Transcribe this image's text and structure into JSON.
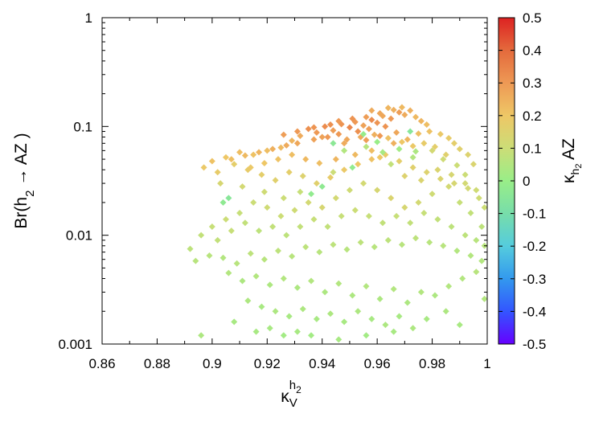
{
  "chart_data": {
    "type": "scatter",
    "title": "",
    "xlabel": {
      "base": "κ",
      "sub": "V",
      "sup_base": "h",
      "sup_sub": "2"
    },
    "ylabel": {
      "prefix": "Br(h",
      "sub": "2",
      "suffix": " → AZ )"
    },
    "colorbar_label": {
      "base": "κ",
      "sub_base": "h",
      "sub_sub": "2",
      "suffix": " AZ"
    },
    "xlim": [
      0.86,
      1.0
    ],
    "ylim": [
      0.001,
      1
    ],
    "y_scale": "log",
    "grid": false,
    "x_ticks": [
      {
        "value": 0.86,
        "label": "0.86"
      },
      {
        "value": 0.88,
        "label": "0.88"
      },
      {
        "value": 0.9,
        "label": "0.9"
      },
      {
        "value": 0.92,
        "label": "0.92"
      },
      {
        "value": 0.94,
        "label": "0.94"
      },
      {
        "value": 0.96,
        "label": "0.96"
      },
      {
        "value": 0.98,
        "label": "0.98"
      },
      {
        "value": 1.0,
        "label": "1"
      }
    ],
    "y_ticks": [
      {
        "value": 0.001,
        "label": "0.001"
      },
      {
        "value": 0.01,
        "label": "0.01"
      },
      {
        "value": 0.1,
        "label": "0.1"
      },
      {
        "value": 1,
        "label": "1"
      }
    ],
    "colorbar": {
      "range": [
        -0.5,
        0.5
      ],
      "ticks": [
        {
          "value": 0.5,
          "label": "0.5"
        },
        {
          "value": 0.4,
          "label": "0.4"
        },
        {
          "value": 0.3,
          "label": "0.3"
        },
        {
          "value": 0.2,
          "label": "0.2"
        },
        {
          "value": 0.1,
          "label": "0.1"
        },
        {
          "value": 0.0,
          "label": "0"
        },
        {
          "value": -0.1,
          "label": "-0.1"
        },
        {
          "value": -0.2,
          "label": "-0.2"
        },
        {
          "value": -0.3,
          "label": "-0.3"
        },
        {
          "value": -0.4,
          "label": "-0.4"
        },
        {
          "value": -0.5,
          "label": "-0.5"
        }
      ],
      "colors": [
        "#6600ff",
        "#3355ff",
        "#3399ee",
        "#55ccdd",
        "#77ddaa",
        "#99ee88",
        "#ccdd77",
        "#eec766",
        "#ee9955",
        "#e46a3c",
        "#dd2222"
      ]
    },
    "points": [
      [
        0.935,
        0.095,
        0.32
      ],
      [
        0.938,
        0.088,
        0.3
      ],
      [
        0.941,
        0.1,
        0.33
      ],
      [
        0.944,
        0.092,
        0.29
      ],
      [
        0.947,
        0.105,
        0.31
      ],
      [
        0.95,
        0.098,
        0.34
      ],
      [
        0.952,
        0.11,
        0.3
      ],
      [
        0.955,
        0.102,
        0.28
      ],
      [
        0.958,
        0.115,
        0.33
      ],
      [
        0.96,
        0.108,
        0.31
      ],
      [
        0.962,
        0.125,
        0.27
      ],
      [
        0.965,
        0.118,
        0.3
      ],
      [
        0.968,
        0.135,
        0.29
      ],
      [
        0.97,
        0.128,
        0.26
      ],
      [
        0.972,
        0.14,
        0.25
      ],
      [
        0.974,
        0.122,
        0.23
      ],
      [
        0.976,
        0.112,
        0.24
      ],
      [
        0.978,
        0.104,
        0.22
      ],
      [
        0.94,
        0.08,
        0.28
      ],
      [
        0.946,
        0.085,
        0.3
      ],
      [
        0.953,
        0.09,
        0.32
      ],
      [
        0.957,
        0.095,
        0.29
      ],
      [
        0.963,
        0.1,
        0.31
      ],
      [
        0.967,
        0.088,
        0.27
      ],
      [
        0.932,
        0.082,
        0.26
      ],
      [
        0.929,
        0.074,
        0.24
      ],
      [
        0.948,
        0.07,
        0.26
      ],
      [
        0.956,
        0.075,
        0.29
      ],
      [
        0.961,
        0.082,
        0.3
      ],
      [
        0.966,
        0.07,
        0.25
      ],
      [
        0.971,
        0.076,
        0.24
      ],
      [
        0.975,
        0.086,
        0.22
      ],
      [
        0.979,
        0.09,
        0.21
      ],
      [
        0.983,
        0.085,
        0.19
      ],
      [
        0.986,
        0.078,
        0.18
      ],
      [
        0.988,
        0.07,
        0.17
      ],
      [
        0.99,
        0.062,
        0.16
      ],
      [
        0.993,
        0.055,
        0.15
      ],
      [
        0.995,
        0.045,
        0.14
      ],
      [
        0.92,
        0.06,
        0.22
      ],
      [
        0.925,
        0.064,
        0.23
      ],
      [
        0.915,
        0.055,
        0.21
      ],
      [
        0.91,
        0.058,
        0.22
      ],
      [
        0.905,
        0.052,
        0.2
      ],
      [
        0.9,
        0.048,
        0.21
      ],
      [
        0.897,
        0.042,
        0.19
      ],
      [
        0.902,
        0.038,
        0.18
      ],
      [
        0.908,
        0.045,
        0.17
      ],
      [
        0.913,
        0.04,
        0.18
      ],
      [
        0.918,
        0.036,
        0.17
      ],
      [
        0.923,
        0.032,
        0.16
      ],
      [
        0.928,
        0.038,
        0.17
      ],
      [
        0.933,
        0.035,
        0.15
      ],
      [
        0.938,
        0.03,
        0.16
      ],
      [
        0.943,
        0.034,
        0.18
      ],
      [
        0.948,
        0.04,
        0.19
      ],
      [
        0.953,
        0.045,
        0.2
      ],
      [
        0.958,
        0.05,
        0.21
      ],
      [
        0.963,
        0.055,
        0.18
      ],
      [
        0.968,
        0.048,
        0.17
      ],
      [
        0.973,
        0.042,
        0.16
      ],
      [
        0.978,
        0.038,
        0.15
      ],
      [
        0.983,
        0.033,
        0.14
      ],
      [
        0.988,
        0.03,
        0.13
      ],
      [
        0.993,
        0.027,
        0.12
      ],
      [
        0.997,
        0.022,
        0.11
      ],
      [
        0.999,
        0.018,
        0.1
      ],
      [
        0.948,
        0.06,
        0.05
      ],
      [
        0.962,
        0.058,
        0.03
      ],
      [
        0.968,
        0.062,
        0.02
      ],
      [
        0.974,
        0.059,
        0.04
      ],
      [
        0.956,
        0.065,
        0.06
      ],
      [
        0.972,
        0.09,
        -0.05
      ],
      [
        0.944,
        0.07,
        -0.04
      ],
      [
        0.906,
        0.022,
        -0.05
      ],
      [
        0.904,
        0.02,
        -0.03
      ],
      [
        0.951,
        0.042,
        -0.02
      ],
      [
        0.94,
        0.028,
        -0.03
      ],
      [
        0.936,
        0.024,
        -0.02
      ],
      [
        0.98,
        0.06,
        0.12
      ],
      [
        0.984,
        0.05,
        0.11
      ],
      [
        0.989,
        0.044,
        0.1
      ],
      [
        0.992,
        0.036,
        0.1
      ],
      [
        0.986,
        0.028,
        0.12
      ],
      [
        0.98,
        0.024,
        0.11
      ],
      [
        0.975,
        0.02,
        0.12
      ],
      [
        0.97,
        0.018,
        0.13
      ],
      [
        0.965,
        0.022,
        0.14
      ],
      [
        0.96,
        0.026,
        0.13
      ],
      [
        0.955,
        0.03,
        0.12
      ],
      [
        0.95,
        0.026,
        0.11
      ],
      [
        0.945,
        0.022,
        0.12
      ],
      [
        0.94,
        0.018,
        0.13
      ],
      [
        0.935,
        0.02,
        0.12
      ],
      [
        0.93,
        0.017,
        0.11
      ],
      [
        0.925,
        0.015,
        0.1
      ],
      [
        0.92,
        0.018,
        0.11
      ],
      [
        0.915,
        0.02,
        0.1
      ],
      [
        0.91,
        0.016,
        0.09
      ],
      [
        0.905,
        0.014,
        0.1
      ],
      [
        0.9,
        0.012,
        0.09
      ],
      [
        0.896,
        0.01,
        0.08
      ],
      [
        0.902,
        0.009,
        0.08
      ],
      [
        0.907,
        0.011,
        0.09
      ],
      [
        0.912,
        0.013,
        0.08
      ],
      [
        0.917,
        0.011,
        0.07
      ],
      [
        0.922,
        0.012,
        0.08
      ],
      [
        0.927,
        0.01,
        0.07
      ],
      [
        0.932,
        0.012,
        0.08
      ],
      [
        0.937,
        0.014,
        0.09
      ],
      [
        0.942,
        0.012,
        0.08
      ],
      [
        0.947,
        0.015,
        0.09
      ],
      [
        0.952,
        0.017,
        0.1
      ],
      [
        0.957,
        0.015,
        0.09
      ],
      [
        0.962,
        0.013,
        0.08
      ],
      [
        0.967,
        0.015,
        0.09
      ],
      [
        0.972,
        0.013,
        0.08
      ],
      [
        0.977,
        0.016,
        0.09
      ],
      [
        0.982,
        0.014,
        0.08
      ],
      [
        0.987,
        0.012,
        0.07
      ],
      [
        0.992,
        0.01,
        0.07
      ],
      [
        0.996,
        0.009,
        0.06
      ],
      [
        0.999,
        0.008,
        0.06
      ],
      [
        0.998,
        0.012,
        0.07
      ],
      [
        0.994,
        0.016,
        0.08
      ],
      [
        0.99,
        0.02,
        0.09
      ],
      [
        0.892,
        0.0075,
        0.07
      ],
      [
        0.894,
        0.0058,
        0.06
      ],
      [
        0.899,
        0.0065,
        0.06
      ],
      [
        0.904,
        0.0062,
        0.05
      ],
      [
        0.909,
        0.0055,
        0.06
      ],
      [
        0.914,
        0.0068,
        0.07
      ],
      [
        0.919,
        0.006,
        0.06
      ],
      [
        0.924,
        0.0072,
        0.07
      ],
      [
        0.929,
        0.0064,
        0.06
      ],
      [
        0.934,
        0.0078,
        0.07
      ],
      [
        0.939,
        0.007,
        0.06
      ],
      [
        0.944,
        0.0082,
        0.07
      ],
      [
        0.949,
        0.0074,
        0.06
      ],
      [
        0.954,
        0.0086,
        0.07
      ],
      [
        0.959,
        0.0078,
        0.06
      ],
      [
        0.964,
        0.009,
        0.07
      ],
      [
        0.969,
        0.0082,
        0.06
      ],
      [
        0.974,
        0.0094,
        0.07
      ],
      [
        0.979,
        0.0086,
        0.06
      ],
      [
        0.984,
        0.008,
        0.06
      ],
      [
        0.989,
        0.0072,
        0.05
      ],
      [
        0.994,
        0.0065,
        0.05
      ],
      [
        0.998,
        0.0058,
        0.05
      ],
      [
        0.906,
        0.0045,
        0.05
      ],
      [
        0.911,
        0.0038,
        0.04
      ],
      [
        0.916,
        0.0042,
        0.05
      ],
      [
        0.921,
        0.0035,
        0.04
      ],
      [
        0.926,
        0.004,
        0.05
      ],
      [
        0.931,
        0.0033,
        0.04
      ],
      [
        0.936,
        0.0038,
        0.05
      ],
      [
        0.941,
        0.003,
        0.04
      ],
      [
        0.946,
        0.0036,
        0.05
      ],
      [
        0.951,
        0.0028,
        0.04
      ],
      [
        0.956,
        0.0034,
        0.05
      ],
      [
        0.961,
        0.0026,
        0.04
      ],
      [
        0.966,
        0.0032,
        0.05
      ],
      [
        0.971,
        0.0024,
        0.04
      ],
      [
        0.976,
        0.003,
        0.05
      ],
      [
        0.981,
        0.0028,
        0.04
      ],
      [
        0.986,
        0.0034,
        0.05
      ],
      [
        0.991,
        0.004,
        0.05
      ],
      [
        0.996,
        0.0046,
        0.06
      ],
      [
        0.999,
        0.0026,
        0.05
      ],
      [
        0.913,
        0.0025,
        0.04
      ],
      [
        0.918,
        0.0022,
        0.03
      ],
      [
        0.923,
        0.002,
        0.04
      ],
      [
        0.928,
        0.0018,
        0.03
      ],
      [
        0.933,
        0.0021,
        0.04
      ],
      [
        0.938,
        0.0017,
        0.03
      ],
      [
        0.943,
        0.0019,
        0.04
      ],
      [
        0.948,
        0.0016,
        0.03
      ],
      [
        0.953,
        0.002,
        0.04
      ],
      [
        0.958,
        0.0017,
        0.03
      ],
      [
        0.963,
        0.0015,
        0.04
      ],
      [
        0.968,
        0.0018,
        0.03
      ],
      [
        0.973,
        0.0014,
        0.04
      ],
      [
        0.978,
        0.0017,
        0.03
      ],
      [
        0.916,
        0.0013,
        0.03
      ],
      [
        0.921,
        0.0014,
        0.03
      ],
      [
        0.926,
        0.0012,
        0.02
      ],
      [
        0.931,
        0.0013,
        0.03
      ],
      [
        0.936,
        0.0012,
        0.02
      ],
      [
        0.946,
        0.0011,
        0.03
      ],
      [
        0.956,
        0.0012,
        0.02
      ],
      [
        0.966,
        0.0013,
        0.03
      ],
      [
        0.896,
        0.0012,
        0.04
      ],
      [
        0.908,
        0.0016,
        0.03
      ],
      [
        0.985,
        0.002,
        0.04
      ],
      [
        0.99,
        0.0015,
        0.03
      ],
      [
        0.961,
        0.052,
        0.2
      ],
      [
        0.958,
        0.06,
        0.22
      ],
      [
        0.952,
        0.055,
        0.23
      ],
      [
        0.945,
        0.05,
        0.24
      ],
      [
        0.939,
        0.046,
        0.22
      ],
      [
        0.934,
        0.05,
        0.23
      ],
      [
        0.929,
        0.055,
        0.22
      ],
      [
        0.924,
        0.05,
        0.21
      ],
      [
        0.919,
        0.046,
        0.2
      ],
      [
        0.914,
        0.042,
        0.19
      ],
      [
        0.97,
        0.035,
        0.15
      ],
      [
        0.976,
        0.032,
        0.14
      ],
      [
        0.982,
        0.04,
        0.14
      ],
      [
        0.987,
        0.036,
        0.13
      ],
      [
        0.992,
        0.03,
        0.12
      ],
      [
        0.996,
        0.026,
        0.11
      ],
      [
        0.985,
        0.055,
        0.16
      ],
      [
        0.981,
        0.065,
        0.17
      ],
      [
        0.977,
        0.07,
        0.18
      ],
      [
        0.973,
        0.066,
        0.19
      ],
      [
        0.969,
        0.072,
        0.2
      ],
      [
        0.964,
        0.078,
        0.21
      ],
      [
        0.959,
        0.084,
        0.25
      ],
      [
        0.954,
        0.08,
        0.26
      ],
      [
        0.949,
        0.076,
        0.27
      ],
      [
        0.942,
        0.08,
        0.3
      ],
      [
        0.937,
        0.076,
        0.28
      ],
      [
        0.931,
        0.07,
        0.27
      ],
      [
        0.927,
        0.067,
        0.26
      ],
      [
        0.922,
        0.062,
        0.25
      ],
      [
        0.917,
        0.058,
        0.24
      ],
      [
        0.912,
        0.054,
        0.23
      ],
      [
        0.907,
        0.05,
        0.22
      ],
      [
        0.958,
        0.14,
        0.26
      ],
      [
        0.964,
        0.148,
        0.24
      ],
      [
        0.969,
        0.15,
        0.23
      ],
      [
        0.966,
        0.142,
        0.25
      ],
      [
        0.961,
        0.132,
        0.27
      ],
      [
        0.956,
        0.122,
        0.29
      ],
      [
        0.951,
        0.118,
        0.31
      ],
      [
        0.946,
        0.112,
        0.3
      ],
      [
        0.943,
        0.104,
        0.32
      ],
      [
        0.937,
        0.098,
        0.31
      ],
      [
        0.931,
        0.09,
        0.3
      ],
      [
        0.926,
        0.084,
        0.29
      ],
      [
        0.955,
        0.085,
        -0.01
      ],
      [
        0.96,
        0.072,
        0.0
      ],
      [
        0.973,
        0.052,
        0.05
      ],
      [
        0.965,
        0.045,
        0.08
      ],
      [
        0.944,
        0.038,
        0.1
      ],
      [
        0.932,
        0.025,
        0.09
      ],
      [
        0.926,
        0.022,
        0.1
      ],
      [
        0.919,
        0.025,
        0.11
      ],
      [
        0.911,
        0.028,
        0.12
      ],
      [
        0.903,
        0.03,
        0.13
      ]
    ]
  }
}
